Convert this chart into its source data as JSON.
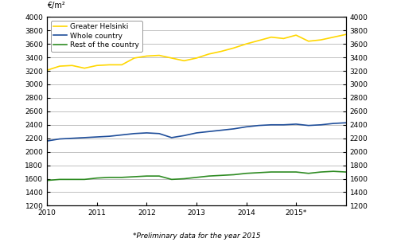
{
  "title_left": "€/m²",
  "xlabel_note": "*Preliminary data for the year 2015",
  "ylim": [
    1200,
    4000
  ],
  "yticks": [
    1200,
    1400,
    1600,
    1800,
    2000,
    2200,
    2400,
    2600,
    2800,
    3000,
    3200,
    3400,
    3600,
    3800,
    4000
  ],
  "xtick_labels": [
    "2010",
    "2011",
    "2012",
    "2013",
    "2014",
    "2015*"
  ],
  "xtick_positions": [
    0,
    4,
    8,
    12,
    16,
    20
  ],
  "legend": [
    "Greater Helsinki",
    "Whole country",
    "Rest of the country"
  ],
  "colors": [
    "#FFD700",
    "#1F4E9A",
    "#2E8B22"
  ],
  "background_color": "#FFFFFF",
  "grid_color": "#C0C0C0",
  "helsinki": [
    3210,
    3270,
    3280,
    3240,
    3280,
    3290,
    3290,
    3390,
    3420,
    3430,
    3390,
    3350,
    3390,
    3450,
    3490,
    3540,
    3600,
    3650,
    3700,
    3680,
    3730,
    3640,
    3660,
    3700,
    3740
  ],
  "whole": [
    2160,
    2190,
    2200,
    2210,
    2220,
    2230,
    2250,
    2270,
    2280,
    2270,
    2210,
    2240,
    2280,
    2300,
    2320,
    2340,
    2370,
    2390,
    2400,
    2400,
    2410,
    2390,
    2400,
    2420,
    2430
  ],
  "rest": [
    1575,
    1590,
    1590,
    1590,
    1610,
    1620,
    1620,
    1630,
    1640,
    1640,
    1590,
    1600,
    1620,
    1640,
    1650,
    1660,
    1680,
    1690,
    1700,
    1700,
    1700,
    1680,
    1700,
    1710,
    1700
  ]
}
